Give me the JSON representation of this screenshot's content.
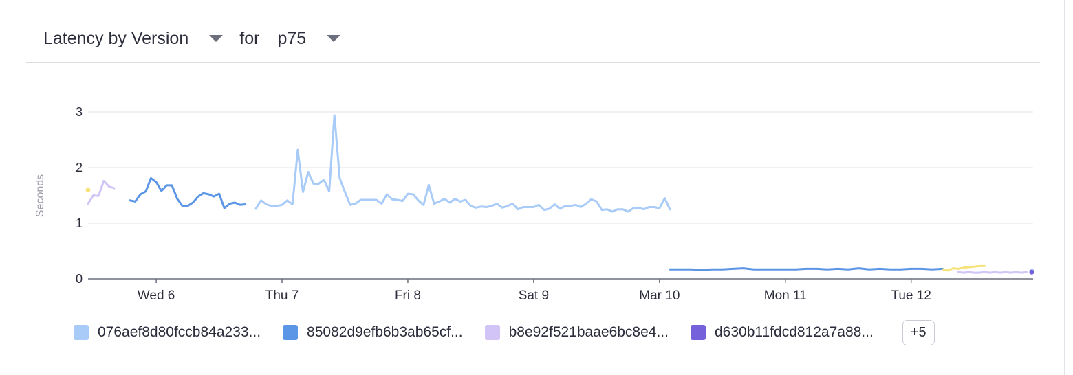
{
  "header": {
    "metric_label": "Latency by Version",
    "for_label": "for",
    "percentile_label": "p75"
  },
  "legend": {
    "items": [
      {
        "label": "076aef8d80fccb84a233...",
        "color": "#a9cbf7"
      },
      {
        "label": "85082d9efb6b3ab65cf...",
        "color": "#5b95e6"
      },
      {
        "label": "b8e92f521baae6bc8e4...",
        "color": "#d2c4f6"
      },
      {
        "label": "d630b11fdcd812a7a88...",
        "color": "#7561d9"
      }
    ],
    "more_label": "+5"
  },
  "chart_data": {
    "type": "line",
    "title": "Latency by Version",
    "ylabel": "Seconds",
    "xlabel": "",
    "ylim": [
      0,
      3
    ],
    "yticks": [
      0,
      1,
      2,
      3
    ],
    "xlim": [
      "2024-03-05T11:00",
      "2024-03-12T23:00"
    ],
    "xticks": [
      {
        "label": "Wed 6",
        "x": "2024-03-06T00:00"
      },
      {
        "label": "Thu 7",
        "x": "2024-03-07T00:00"
      },
      {
        "label": "Fri 8",
        "x": "2024-03-08T00:00"
      },
      {
        "label": "Sat 9",
        "x": "2024-03-09T00:00"
      },
      {
        "label": "Mar 10",
        "x": "2024-03-10T00:00"
      },
      {
        "label": "Mon 11",
        "x": "2024-03-11T00:00"
      },
      {
        "label": "Tue 12",
        "x": "2024-03-12T00:00"
      }
    ],
    "grid": true,
    "legend_position": "bottom",
    "series": [
      {
        "name": "076aef8d80fccb84a233...",
        "color": "#a9cbf7",
        "segments": [
          [
            [
              "2024-03-06T19:00",
              1.26
            ],
            [
              "2024-03-06T20:00",
              1.41
            ],
            [
              "2024-03-06T21:00",
              1.34
            ],
            [
              "2024-03-06T22:00",
              1.31
            ],
            [
              "2024-03-06T23:00",
              1.31
            ],
            [
              "2024-03-07T00:00",
              1.33
            ],
            [
              "2024-03-07T01:00",
              1.41
            ],
            [
              "2024-03-07T02:00",
              1.34
            ],
            [
              "2024-03-07T03:00",
              2.32
            ],
            [
              "2024-03-07T04:00",
              1.56
            ],
            [
              "2024-03-07T05:00",
              1.92
            ],
            [
              "2024-03-07T06:00",
              1.71
            ],
            [
              "2024-03-07T07:00",
              1.71
            ],
            [
              "2024-03-07T08:00",
              1.78
            ],
            [
              "2024-03-07T09:00",
              1.57
            ],
            [
              "2024-03-07T10:00",
              2.94
            ],
            [
              "2024-03-07T11:00",
              1.81
            ],
            [
              "2024-03-07T12:00",
              1.56
            ],
            [
              "2024-03-07T13:00",
              1.33
            ],
            [
              "2024-03-07T14:00",
              1.35
            ],
            [
              "2024-03-07T15:00",
              1.42
            ],
            [
              "2024-03-07T16:00",
              1.42
            ],
            [
              "2024-03-07T17:00",
              1.42
            ],
            [
              "2024-03-07T18:00",
              1.42
            ],
            [
              "2024-03-07T19:00",
              1.35
            ],
            [
              "2024-03-07T20:00",
              1.52
            ],
            [
              "2024-03-07T21:00",
              1.43
            ],
            [
              "2024-03-07T22:00",
              1.42
            ],
            [
              "2024-03-07T23:00",
              1.4
            ],
            [
              "2024-03-08T00:00",
              1.53
            ],
            [
              "2024-03-08T01:00",
              1.52
            ],
            [
              "2024-03-08T02:00",
              1.41
            ],
            [
              "2024-03-08T03:00",
              1.33
            ],
            [
              "2024-03-08T04:00",
              1.69
            ],
            [
              "2024-03-08T05:00",
              1.35
            ],
            [
              "2024-03-08T06:00",
              1.39
            ],
            [
              "2024-03-08T07:00",
              1.44
            ],
            [
              "2024-03-08T08:00",
              1.37
            ],
            [
              "2024-03-08T09:00",
              1.44
            ],
            [
              "2024-03-08T10:00",
              1.39
            ],
            [
              "2024-03-08T11:00",
              1.42
            ],
            [
              "2024-03-08T12:00",
              1.31
            ],
            [
              "2024-03-08T13:00",
              1.28
            ],
            [
              "2024-03-08T14:00",
              1.3
            ],
            [
              "2024-03-08T15:00",
              1.29
            ],
            [
              "2024-03-08T16:00",
              1.31
            ],
            [
              "2024-03-08T17:00",
              1.35
            ],
            [
              "2024-03-08T18:00",
              1.28
            ],
            [
              "2024-03-08T19:00",
              1.31
            ],
            [
              "2024-03-08T20:00",
              1.35
            ],
            [
              "2024-03-08T21:00",
              1.25
            ],
            [
              "2024-03-08T22:00",
              1.29
            ],
            [
              "2024-03-08T23:00",
              1.29
            ],
            [
              "2024-03-09T00:00",
              1.29
            ],
            [
              "2024-03-09T01:00",
              1.33
            ],
            [
              "2024-03-09T02:00",
              1.24
            ],
            [
              "2024-03-09T03:00",
              1.26
            ],
            [
              "2024-03-09T04:00",
              1.34
            ],
            [
              "2024-03-09T05:00",
              1.26
            ],
            [
              "2024-03-09T06:00",
              1.31
            ],
            [
              "2024-03-09T07:00",
              1.31
            ],
            [
              "2024-03-09T08:00",
              1.33
            ],
            [
              "2024-03-09T09:00",
              1.29
            ],
            [
              "2024-03-09T10:00",
              1.35
            ],
            [
              "2024-03-09T11:00",
              1.43
            ],
            [
              "2024-03-09T12:00",
              1.39
            ],
            [
              "2024-03-09T13:00",
              1.24
            ],
            [
              "2024-03-09T14:00",
              1.25
            ],
            [
              "2024-03-09T15:00",
              1.21
            ],
            [
              "2024-03-09T16:00",
              1.25
            ],
            [
              "2024-03-09T17:00",
              1.25
            ],
            [
              "2024-03-09T18:00",
              1.21
            ],
            [
              "2024-03-09T19:00",
              1.27
            ],
            [
              "2024-03-09T20:00",
              1.28
            ],
            [
              "2024-03-09T21:00",
              1.25
            ],
            [
              "2024-03-09T22:00",
              1.29
            ],
            [
              "2024-03-09T23:00",
              1.29
            ],
            [
              "2024-03-10T00:00",
              1.27
            ],
            [
              "2024-03-10T01:00",
              1.45
            ],
            [
              "2024-03-10T02:00",
              1.25
            ]
          ],
          [
            [
              "2024-03-12T23:00",
              0.14
            ]
          ]
        ]
      },
      {
        "name": "85082d9efb6b3ab65cf...",
        "color": "#5b95e6",
        "segments": [
          [
            [
              "2024-03-05T19:00",
              1.41
            ],
            [
              "2024-03-05T20:00",
              1.39
            ],
            [
              "2024-03-05T21:00",
              1.52
            ],
            [
              "2024-03-05T22:00",
              1.57
            ],
            [
              "2024-03-05T23:00",
              1.81
            ],
            [
              "2024-03-06T00:00",
              1.74
            ],
            [
              "2024-03-06T01:00",
              1.58
            ],
            [
              "2024-03-06T02:00",
              1.68
            ],
            [
              "2024-03-06T03:00",
              1.68
            ],
            [
              "2024-03-06T04:00",
              1.44
            ],
            [
              "2024-03-06T05:00",
              1.31
            ],
            [
              "2024-03-06T06:00",
              1.31
            ],
            [
              "2024-03-06T07:00",
              1.37
            ],
            [
              "2024-03-06T08:00",
              1.48
            ],
            [
              "2024-03-06T09:00",
              1.54
            ],
            [
              "2024-03-06T10:00",
              1.52
            ],
            [
              "2024-03-06T11:00",
              1.48
            ],
            [
              "2024-03-06T12:00",
              1.53
            ],
            [
              "2024-03-06T13:00",
              1.27
            ],
            [
              "2024-03-06T14:00",
              1.35
            ],
            [
              "2024-03-06T15:00",
              1.37
            ],
            [
              "2024-03-06T16:00",
              1.33
            ],
            [
              "2024-03-06T17:00",
              1.34
            ]
          ],
          [
            [
              "2024-03-10T02:00",
              0.17
            ],
            [
              "2024-03-10T04:00",
              0.17
            ],
            [
              "2024-03-10T06:00",
              0.17
            ],
            [
              "2024-03-10T08:00",
              0.16
            ],
            [
              "2024-03-10T10:00",
              0.17
            ],
            [
              "2024-03-10T12:00",
              0.17
            ],
            [
              "2024-03-10T14:00",
              0.18
            ],
            [
              "2024-03-10T16:00",
              0.19
            ],
            [
              "2024-03-10T18:00",
              0.17
            ],
            [
              "2024-03-10T20:00",
              0.17
            ],
            [
              "2024-03-10T22:00",
              0.17
            ],
            [
              "2024-03-11T00:00",
              0.17
            ],
            [
              "2024-03-11T02:00",
              0.17
            ],
            [
              "2024-03-11T04:00",
              0.18
            ],
            [
              "2024-03-11T06:00",
              0.18
            ],
            [
              "2024-03-11T08:00",
              0.17
            ],
            [
              "2024-03-11T10:00",
              0.18
            ],
            [
              "2024-03-11T12:00",
              0.17
            ],
            [
              "2024-03-11T14:00",
              0.19
            ],
            [
              "2024-03-11T16:00",
              0.17
            ],
            [
              "2024-03-11T18:00",
              0.18
            ],
            [
              "2024-03-11T20:00",
              0.17
            ],
            [
              "2024-03-11T22:00",
              0.17
            ],
            [
              "2024-03-12T00:00",
              0.18
            ],
            [
              "2024-03-12T02:00",
              0.18
            ],
            [
              "2024-03-12T04:00",
              0.17
            ],
            [
              "2024-03-12T06:00",
              0.18
            ]
          ]
        ]
      },
      {
        "name": "b8e92f521baae6bc8e4...",
        "color": "#d2c4f6",
        "segments": [
          [
            [
              "2024-03-05T11:00",
              1.35
            ],
            [
              "2024-03-05T12:00",
              1.5
            ],
            [
              "2024-03-05T13:00",
              1.49
            ],
            [
              "2024-03-05T14:00",
              1.76
            ],
            [
              "2024-03-05T15:00",
              1.66
            ],
            [
              "2024-03-05T16:00",
              1.63
            ]
          ],
          [
            [
              "2024-03-12T09:00",
              0.12
            ],
            [
              "2024-03-12T10:00",
              0.11
            ],
            [
              "2024-03-12T11:00",
              0.12
            ],
            [
              "2024-03-12T12:00",
              0.11
            ],
            [
              "2024-03-12T13:00",
              0.11
            ],
            [
              "2024-03-12T14:00",
              0.12
            ],
            [
              "2024-03-12T15:00",
              0.11
            ],
            [
              "2024-03-12T16:00",
              0.12
            ],
            [
              "2024-03-12T17:00",
              0.11
            ],
            [
              "2024-03-12T18:00",
              0.12
            ],
            [
              "2024-03-12T19:00",
              0.11
            ],
            [
              "2024-03-12T20:00",
              0.12
            ],
            [
              "2024-03-12T21:00",
              0.11
            ],
            [
              "2024-03-12T22:00",
              0.12
            ]
          ]
        ]
      },
      {
        "name": "d630b11fdcd812a7a88...",
        "color": "#7561d9",
        "segments": [
          [
            [
              "2024-03-12T23:00",
              0.12
            ]
          ]
        ]
      },
      {
        "color": "#f6e27a",
        "segments": [
          [
            [
              "2024-03-05T11:00",
              1.6
            ]
          ],
          [
            [
              "2024-03-12T06:00",
              0.17
            ],
            [
              "2024-03-12T07:00",
              0.15
            ],
            [
              "2024-03-12T08:00",
              0.19
            ],
            [
              "2024-03-12T09:00",
              0.18
            ],
            [
              "2024-03-12T10:00",
              0.2
            ],
            [
              "2024-03-12T11:00",
              0.21
            ],
            [
              "2024-03-12T12:00",
              0.22
            ],
            [
              "2024-03-12T13:00",
              0.23
            ],
            [
              "2024-03-12T14:00",
              0.23
            ]
          ]
        ]
      }
    ]
  }
}
